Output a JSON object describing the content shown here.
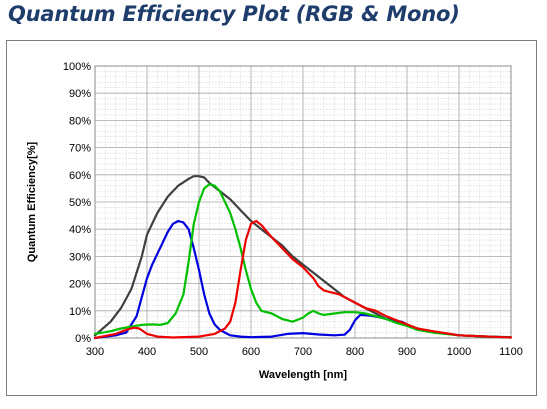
{
  "title": "Quantum Efficiency Plot (RGB & Mono)",
  "chart_data": {
    "type": "line",
    "title": "Quantum Efficiency Plot (RGB & Mono)",
    "xlabel": "Wavelength [nm]",
    "ylabel": "Quantum Efficiency[%]",
    "xlim": [
      300,
      1100
    ],
    "ylim": [
      0,
      100
    ],
    "xticks": [
      "300",
      "400",
      "500",
      "600",
      "700",
      "800",
      "900",
      "1000",
      "1100"
    ],
    "yticks": [
      "0%",
      "10%",
      "20%",
      "30%",
      "40%",
      "50%",
      "60%",
      "70%",
      "80%",
      "90%",
      "100%"
    ],
    "grid": true,
    "legend": "none",
    "series": [
      {
        "color": "#404040",
        "points": [
          [
            300,
            1
          ],
          [
            330,
            6
          ],
          [
            350,
            11
          ],
          [
            370,
            18
          ],
          [
            390,
            30
          ],
          [
            400,
            38
          ],
          [
            420,
            46
          ],
          [
            440,
            52
          ],
          [
            460,
            56
          ],
          [
            480,
            58.5
          ],
          [
            490,
            59.5
          ],
          [
            500,
            59.5
          ],
          [
            510,
            59
          ],
          [
            520,
            57
          ],
          [
            540,
            54
          ],
          [
            560,
            51
          ],
          [
            580,
            47
          ],
          [
            600,
            43
          ],
          [
            620,
            40
          ],
          [
            640,
            37
          ],
          [
            660,
            34
          ],
          [
            680,
            30
          ],
          [
            700,
            27
          ],
          [
            720,
            24
          ],
          [
            740,
            21
          ],
          [
            760,
            18
          ],
          [
            780,
            15
          ],
          [
            800,
            13
          ],
          [
            820,
            11
          ],
          [
            840,
            9
          ],
          [
            860,
            7
          ],
          [
            880,
            6
          ],
          [
            900,
            5
          ],
          [
            920,
            3.5
          ],
          [
            940,
            2.5
          ],
          [
            960,
            2
          ],
          [
            980,
            1.5
          ],
          [
            1000,
            1
          ],
          [
            1020,
            0.8
          ],
          [
            1050,
            0.5
          ],
          [
            1100,
            0.3
          ]
        ]
      },
      {
        "color": "#0000e0",
        "points": [
          [
            300,
            0
          ],
          [
            340,
            1
          ],
          [
            360,
            2
          ],
          [
            380,
            8
          ],
          [
            400,
            22
          ],
          [
            410,
            27
          ],
          [
            420,
            31
          ],
          [
            430,
            35
          ],
          [
            440,
            39
          ],
          [
            450,
            42
          ],
          [
            460,
            43
          ],
          [
            470,
            42.5
          ],
          [
            480,
            40
          ],
          [
            490,
            33
          ],
          [
            500,
            25
          ],
          [
            510,
            16
          ],
          [
            520,
            9
          ],
          [
            530,
            5
          ],
          [
            540,
            3
          ],
          [
            550,
            2
          ],
          [
            560,
            1
          ],
          [
            580,
            0.5
          ],
          [
            600,
            0.3
          ],
          [
            640,
            0.5
          ],
          [
            670,
            1.5
          ],
          [
            700,
            1.8
          ],
          [
            730,
            1.3
          ],
          [
            760,
            1
          ],
          [
            780,
            1.2
          ],
          [
            790,
            3
          ],
          [
            800,
            6.5
          ],
          [
            810,
            8.5
          ],
          [
            830,
            8.2
          ],
          [
            850,
            7.5
          ],
          [
            870,
            6.5
          ],
          [
            890,
            6
          ],
          [
            900,
            5
          ],
          [
            920,
            3
          ],
          [
            940,
            2.5
          ],
          [
            960,
            2
          ],
          [
            1000,
            1
          ],
          [
            1100,
            0.2
          ]
        ]
      },
      {
        "color": "#00c000",
        "points": [
          [
            300,
            1.5
          ],
          [
            330,
            2.5
          ],
          [
            350,
            3.5
          ],
          [
            370,
            4.2
          ],
          [
            390,
            4.8
          ],
          [
            410,
            5
          ],
          [
            425,
            4.8
          ],
          [
            440,
            5.5
          ],
          [
            455,
            9
          ],
          [
            470,
            16
          ],
          [
            480,
            28
          ],
          [
            490,
            42
          ],
          [
            500,
            50
          ],
          [
            510,
            55
          ],
          [
            520,
            56.5
          ],
          [
            530,
            56
          ],
          [
            540,
            54
          ],
          [
            550,
            50
          ],
          [
            560,
            46
          ],
          [
            570,
            40
          ],
          [
            580,
            33
          ],
          [
            590,
            25
          ],
          [
            600,
            18
          ],
          [
            610,
            13
          ],
          [
            620,
            10
          ],
          [
            640,
            9
          ],
          [
            660,
            7
          ],
          [
            670,
            6.5
          ],
          [
            680,
            6
          ],
          [
            700,
            7.5
          ],
          [
            710,
            9
          ],
          [
            720,
            10
          ],
          [
            730,
            9
          ],
          [
            740,
            8.5
          ],
          [
            760,
            9
          ],
          [
            780,
            9.5
          ],
          [
            800,
            9.5
          ],
          [
            820,
            9
          ],
          [
            840,
            8
          ],
          [
            860,
            7
          ],
          [
            880,
            5.5
          ],
          [
            900,
            4.5
          ],
          [
            920,
            3
          ],
          [
            950,
            2
          ],
          [
            1000,
            1
          ],
          [
            1100,
            0.2
          ]
        ]
      },
      {
        "color": "#ee0000",
        "points": [
          [
            300,
            0
          ],
          [
            340,
            1.5
          ],
          [
            360,
            3
          ],
          [
            375,
            3.8
          ],
          [
            385,
            3.5
          ],
          [
            400,
            1.5
          ],
          [
            420,
            0.5
          ],
          [
            450,
            0.2
          ],
          [
            500,
            0.5
          ],
          [
            530,
            1.5
          ],
          [
            550,
            3.5
          ],
          [
            560,
            6
          ],
          [
            570,
            13
          ],
          [
            580,
            25
          ],
          [
            590,
            36
          ],
          [
            600,
            42
          ],
          [
            610,
            43
          ],
          [
            620,
            41.5
          ],
          [
            640,
            37
          ],
          [
            660,
            33
          ],
          [
            680,
            29
          ],
          [
            700,
            26
          ],
          [
            720,
            22
          ],
          [
            730,
            19
          ],
          [
            740,
            17.5
          ],
          [
            750,
            17
          ],
          [
            760,
            16.5
          ],
          [
            770,
            16
          ],
          [
            780,
            15
          ],
          [
            800,
            13
          ],
          [
            820,
            11
          ],
          [
            840,
            10
          ],
          [
            860,
            8
          ],
          [
            880,
            6.5
          ],
          [
            900,
            5
          ],
          [
            920,
            3.5
          ],
          [
            950,
            2.5
          ],
          [
            1000,
            1
          ],
          [
            1100,
            0.2
          ]
        ]
      }
    ]
  }
}
